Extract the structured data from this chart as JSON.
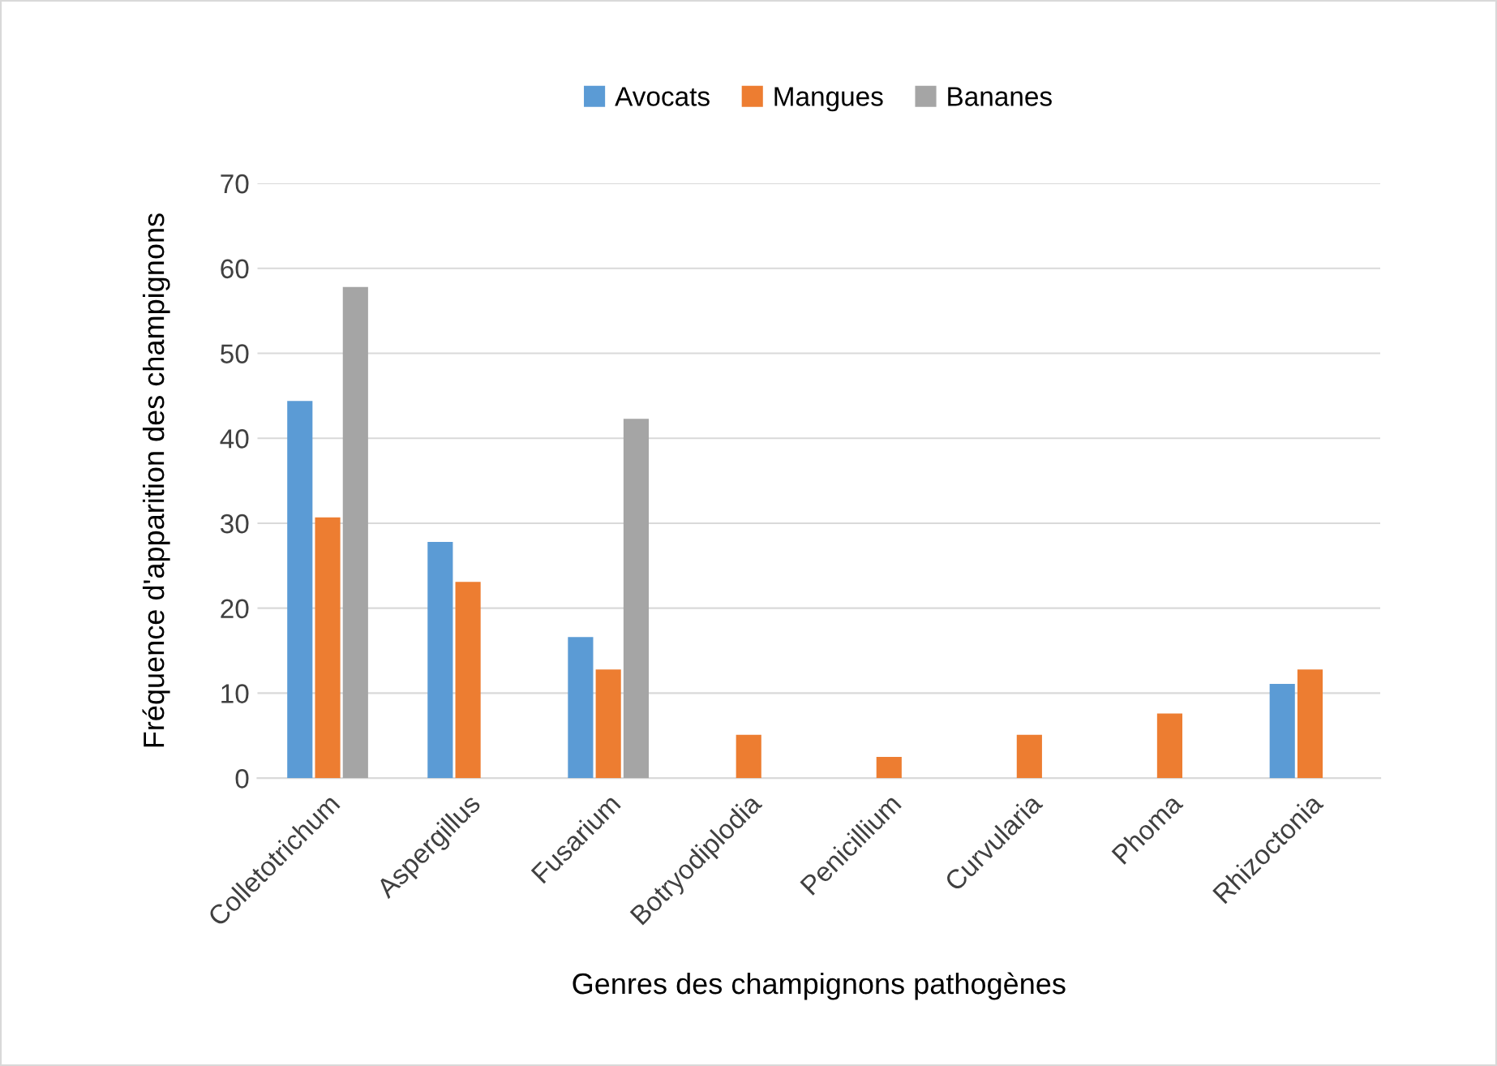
{
  "chart_data": {
    "type": "bar",
    "xlabel": "Genres des champignons pathogènes",
    "ylabel": "Fréquence d'apparition des champignons",
    "categories": [
      "Colletotrichum",
      "Aspergillus",
      "Fusarium",
      "Botryodiplodia",
      "Penicillium",
      "Curvularia",
      "Phoma",
      "Rhizoctonia"
    ],
    "series": [
      {
        "name": "Avocats",
        "color": "#5b9bd5",
        "values": [
          44.4,
          27.8,
          16.6,
          null,
          null,
          null,
          null,
          11.1
        ]
      },
      {
        "name": "Mangues",
        "color": "#ed7d31",
        "values": [
          30.7,
          23.1,
          12.8,
          5.1,
          2.5,
          5.1,
          7.6,
          12.8
        ]
      },
      {
        "name": "Bananes",
        "color": "#a5a5a5",
        "values": [
          57.8,
          null,
          42.3,
          null,
          null,
          null,
          null,
          null
        ]
      }
    ],
    "ylim": [
      0,
      70
    ],
    "yticks": [
      0,
      10,
      20,
      30,
      40,
      50,
      60,
      70
    ],
    "grid": "y",
    "legend": "top"
  }
}
